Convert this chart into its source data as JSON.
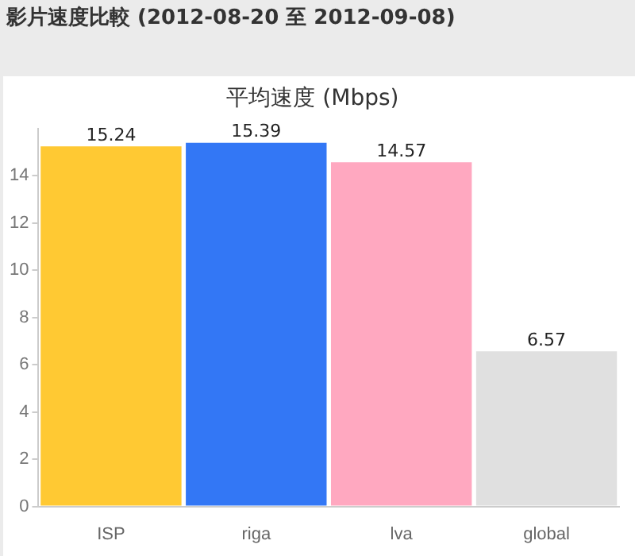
{
  "chart_data": {
    "type": "bar",
    "title": "影片速度比較 (2012-08-20 至 2012-09-08)",
    "subtitle": "平均速度 (Mbps)",
    "categories": [
      "ISP",
      "riga",
      "lva",
      "global"
    ],
    "values": [
      15.24,
      15.39,
      14.57,
      6.57
    ],
    "colors": [
      "#ffc933",
      "#3377f5",
      "#ffa8c0",
      "#e0e0e0"
    ],
    "ylim": [
      0,
      16
    ],
    "yticks": [
      0,
      2,
      4,
      6,
      8,
      10,
      12,
      14
    ],
    "grid": false,
    "legend": false,
    "data_labels": true
  }
}
